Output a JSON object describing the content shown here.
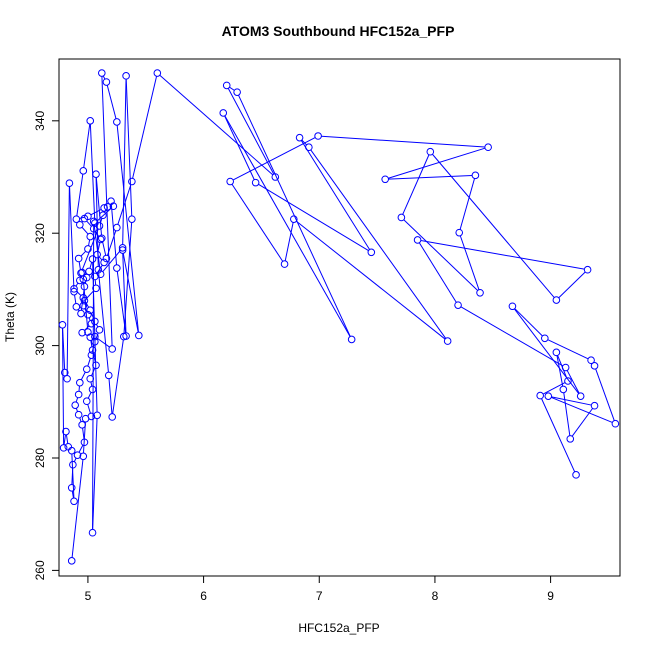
{
  "chart_data": {
    "type": "line",
    "title": "ATOM3 Southbound HFC152a_PFP",
    "xlabel": "HFC152a_PFP",
    "ylabel": "Theta (K)",
    "xlim": [
      4.75,
      9.6
    ],
    "ylim": [
      259,
      351
    ],
    "xticks": [
      5,
      6,
      7,
      8,
      9
    ],
    "yticks": [
      260,
      280,
      300,
      320,
      340
    ],
    "grid": false,
    "legend": "none",
    "series": [
      {
        "color": "#0000ff",
        "marker": "open-circle",
        "x": [
          4.86,
          4.96,
          4.98,
          5.03,
          4.99,
          5.04,
          5.02,
          5.07,
          5.04,
          5.02,
          4.95,
          5.03,
          5.0,
          4.96,
          4.97,
          5.07,
          5.06,
          5.14,
          5.08,
          5.11,
          5.05,
          4.97,
          4.93,
          5.02,
          5.0,
          4.92,
          4.94,
          5.1,
          5.13,
          5.17,
          5.14,
          5.0,
          4.9,
          4.96,
          5.02,
          5.06,
          5.22,
          5.2,
          5.25,
          5.33,
          5.3,
          5.44,
          5.25,
          5.16,
          5.12,
          5.21,
          5.06,
          5.0,
          4.96,
          4.95,
          4.93,
          4.88,
          4.96,
          5.02,
          5.06,
          5.1,
          5.06,
          5.03,
          4.99,
          4.93,
          4.92,
          4.89,
          4.92,
          4.95,
          4.97,
          4.91,
          4.87,
          4.86,
          4.88,
          4.86,
          4.83,
          4.81,
          4.79,
          4.78,
          4.8,
          4.82,
          4.84,
          4.88,
          4.9,
          4.94,
          4.97,
          4.99,
          5.01,
          5.04,
          5.08,
          5.04,
          5.05,
          5.11,
          5.3,
          5.33,
          5.38,
          5.31,
          5.21,
          5.18,
          5.09,
          5.07,
          5.12,
          5.16,
          5.25,
          5.38,
          5.6,
          6.62,
          6.2,
          6.29,
          7.28,
          6.17,
          6.45,
          7.45,
          6.83,
          6.91,
          8.11,
          6.78,
          6.7,
          6.23,
          6.99,
          8.46,
          7.57,
          8.35,
          8.21,
          8.39,
          7.71,
          7.96,
          9.05,
          9.32,
          7.85,
          8.2,
          9.13,
          9.26,
          8.67,
          8.95,
          9.35,
          9.38,
          9.56,
          8.98,
          9.38,
          9.17,
          9.11,
          9.05,
          9.15,
          8.91,
          9.22
        ],
        "y": [
          261.7,
          280.3,
          287.0,
          287.4,
          290.1,
          292.2,
          294.1,
          296.5,
          299.2,
          301.5,
          302.3,
          303.9,
          305.5,
          307.1,
          308.0,
          310.2,
          312.3,
          314.8,
          316.2,
          318.9,
          320.8,
          322.6,
          321.5,
          319.4,
          317.2,
          315.5,
          312.9,
          321.3,
          323.2,
          324.7,
          324.5,
          323.0,
          322.5,
          331.1,
          340.0,
          321.8,
          324.8,
          325.7,
          313.8,
          301.7,
          317.0,
          301.8,
          339.8,
          346.9,
          348.5,
          299.4,
          301.6,
          302.4,
          311.8,
          313.0,
          311.6,
          310.1,
          308.5,
          306.3,
          304.3,
          302.8,
          300.7,
          298.3,
          295.8,
          293.4,
          291.3,
          289.4,
          287.7,
          285.9,
          282.8,
          280.5,
          278.8,
          274.7,
          272.3,
          281.3,
          282.0,
          284.7,
          281.8,
          303.7,
          295.2,
          294.1,
          328.9,
          309.6,
          306.9,
          305.7,
          310.5,
          312.1,
          313.2,
          315.4,
          287.6,
          266.7,
          322.1,
          312.7,
          317.4,
          348.0,
          322.5,
          301.6,
          287.3,
          294.7,
          313.5,
          330.5,
          319.1,
          315.5,
          321.0,
          329.2,
          348.5,
          330.0,
          346.3,
          345.1,
          301.1,
          341.4,
          329.0,
          316.6,
          337.0,
          335.3,
          300.8,
          322.5,
          314.5,
          329.2,
          337.3,
          335.3,
          329.6,
          330.3,
          320.1,
          309.4,
          322.8,
          334.5,
          308.1,
          313.5,
          318.8,
          307.2,
          296.1,
          291.0,
          307.0,
          301.3,
          297.4,
          296.4,
          286.1,
          291.0,
          289.3,
          283.4,
          292.2,
          298.8,
          293.7,
          291.1,
          277.0
        ]
      }
    ]
  }
}
